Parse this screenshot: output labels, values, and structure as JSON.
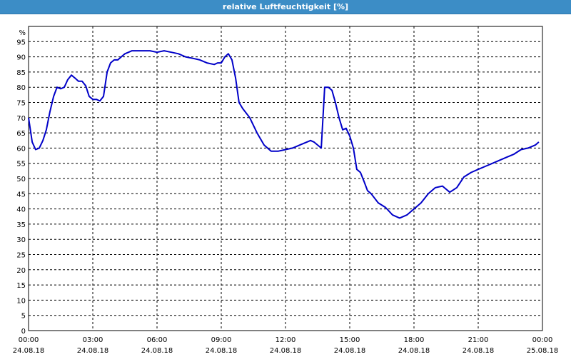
{
  "chart_data": {
    "type": "line",
    "title": "relative Luftfeuchtigkeit [%]",
    "ylabel": "%",
    "ylim": [
      0,
      100
    ],
    "yticks": [
      0,
      5,
      10,
      15,
      20,
      25,
      30,
      35,
      40,
      45,
      50,
      55,
      60,
      65,
      70,
      75,
      80,
      85,
      90,
      95
    ],
    "xlim": [
      0,
      24
    ],
    "xticks": [
      {
        "h": 0,
        "time": "00:00",
        "date": "24.08.18"
      },
      {
        "h": 3,
        "time": "03:00",
        "date": "24.08.18"
      },
      {
        "h": 6,
        "time": "06:00",
        "date": "24.08.18"
      },
      {
        "h": 9,
        "time": "09:00",
        "date": "24.08.18"
      },
      {
        "h": 12,
        "time": "12:00",
        "date": "24.08.18"
      },
      {
        "h": 15,
        "time": "15:00",
        "date": "24.08.18"
      },
      {
        "h": 18,
        "time": "18:00",
        "date": "24.08.18"
      },
      {
        "h": 21,
        "time": "21:00",
        "date": "24.08.18"
      },
      {
        "h": 24,
        "time": "00:00",
        "date": "25.08.18"
      }
    ],
    "grid": true,
    "line_color": "#0000c8",
    "series": [
      {
        "x": [
          0.0,
          0.17,
          0.33,
          0.5,
          0.67,
          0.83,
          1.0,
          1.17,
          1.33,
          1.5,
          1.67,
          1.83,
          2.0,
          2.17,
          2.33,
          2.5,
          2.67,
          2.83,
          3.0,
          3.17,
          3.33,
          3.5,
          3.67,
          3.83,
          4.0,
          4.17,
          4.33,
          4.5,
          4.67,
          4.83,
          5.0,
          5.33,
          5.67,
          6.0,
          6.33,
          6.67,
          7.0,
          7.33,
          7.67,
          8.0,
          8.33,
          8.67,
          8.83,
          9.0,
          9.17,
          9.33,
          9.5,
          9.67,
          9.83,
          10.0,
          10.33,
          10.67,
          11.0,
          11.33,
          11.67,
          12.0,
          12.33,
          12.67,
          13.0,
          13.17,
          13.33,
          13.5,
          13.67,
          13.83,
          14.0,
          14.17,
          14.33,
          14.5,
          14.67,
          14.83,
          15.0,
          15.17,
          15.33,
          15.5,
          15.67,
          15.83,
          16.0,
          16.33,
          16.67,
          17.0,
          17.33,
          17.67,
          18.0,
          18.33,
          18.67,
          19.0,
          19.33,
          19.67,
          20.0,
          20.33,
          20.67,
          21.0,
          21.33,
          21.67,
          22.0,
          22.33,
          22.67,
          23.0,
          23.33,
          23.67,
          23.83
        ],
        "y": [
          70,
          62,
          59.5,
          60,
          62.5,
          66,
          72,
          77,
          80,
          79.5,
          80,
          82.5,
          84,
          83,
          82,
          82,
          80.5,
          77,
          76,
          76,
          75.5,
          77,
          85,
          88,
          89,
          89,
          90,
          91,
          91.5,
          92,
          92,
          92,
          92,
          91.5,
          92,
          91.5,
          91,
          90,
          89.5,
          89,
          88,
          87.5,
          88,
          88,
          90,
          91,
          89,
          83,
          75,
          73,
          70,
          65,
          61,
          59,
          59,
          59.5,
          60,
          61,
          62,
          62.5,
          62,
          61,
          60,
          80,
          80,
          79,
          75,
          70,
          66,
          66.5,
          64,
          60,
          53,
          52,
          49,
          46,
          45,
          42,
          40.5,
          38,
          37,
          38,
          40,
          42,
          45,
          47,
          47.5,
          45.5,
          47,
          50.5,
          52,
          53,
          54,
          55,
          56,
          57,
          58,
          59.5,
          60,
          61,
          62
        ]
      }
    ]
  }
}
